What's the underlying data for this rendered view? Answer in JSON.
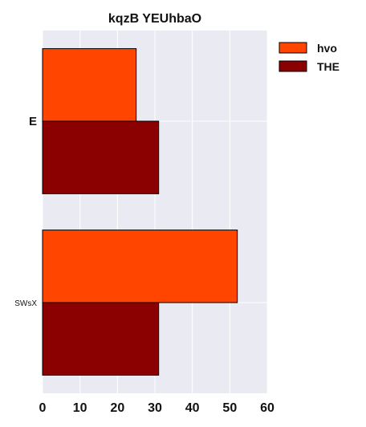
{
  "chart_data": {
    "type": "bar",
    "orientation": "horizontal",
    "title": "kqzB YEUhbaO",
    "xlabel": "",
    "ylabel": "",
    "categories": [
      "E",
      "SWsX"
    ],
    "series": [
      {
        "name": "hvo",
        "values": [
          25,
          52
        ],
        "color": "#ff4500"
      },
      {
        "name": "THE",
        "values": [
          31,
          31
        ],
        "color": "#8b0000"
      }
    ],
    "xlim": [
      0,
      60
    ],
    "xticks": [
      0,
      10,
      20,
      30,
      40,
      50,
      60
    ],
    "grid": true,
    "legend_position": "top-right",
    "background": "#eaeaf2"
  }
}
